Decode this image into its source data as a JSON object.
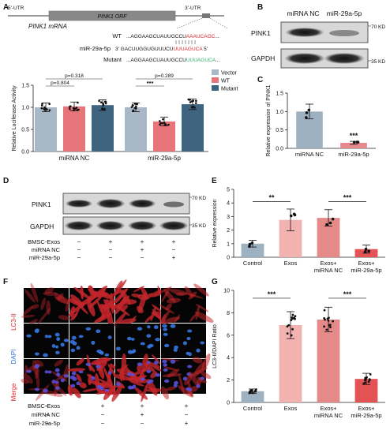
{
  "panel_labels": [
    "A",
    "B",
    "C",
    "D",
    "E",
    "F",
    "G"
  ],
  "panel_a": {
    "gene_map": {
      "left_label": "5'-UTR",
      "orf_label": "PINK1 ORF",
      "right_label": "3'-UTR",
      "mrna_label": "PINK1 mRNA"
    },
    "seq_rows": [
      {
        "label": "WT",
        "pre": "...AGGAAGCUAUUGCCU",
        "hl": "AAAUCAGC",
        "post": "...",
        "hl_color": "#e0262b"
      },
      {
        "label": "miR-29a-5p",
        "pre": "3'  GACUUGGUGUUUCU",
        "hl": "UUUAGUCA",
        "post": "  5'",
        "hl_color": "#e0262b"
      },
      {
        "label": "Mutant",
        "pre": "...AGGAAGCUAUUGCCU",
        "hl": "UUUAGUCA",
        "post": "...",
        "hl_color": "#2fae6b"
      }
    ],
    "pvalues": [
      "p=0.318",
      "p=0.804",
      "***",
      "p=0.289"
    ]
  },
  "panel_b": {
    "col_labels": [
      "miRNA NC",
      "miR-29a-5p"
    ],
    "rows": [
      {
        "name": "PINK1",
        "kd": "70 KD"
      },
      {
        "name": "GAPDH",
        "kd": "35 KD"
      }
    ]
  },
  "panel_d": {
    "rows": [
      {
        "name": "PINK1",
        "kd": "70 KD"
      },
      {
        "name": "GAPDH",
        "kd": "35 KD"
      }
    ],
    "conditions": [
      {
        "name": "BMSC-Exos",
        "signs": [
          "−",
          "+",
          "+",
          "+"
        ]
      },
      {
        "name": "miRNA NC",
        "signs": [
          "−",
          "−",
          "+",
          "−"
        ]
      },
      {
        "name": "miR-29a-5p",
        "signs": [
          "−",
          "−",
          "−",
          "+"
        ]
      }
    ]
  },
  "panel_f": {
    "row_labels": [
      {
        "name": "LC3-II",
        "color": "#e0262b"
      },
      {
        "name": "DAPI",
        "color": "#2a6fdb"
      },
      {
        "name": "Merge",
        "color": "#e0262b"
      }
    ],
    "conditions": [
      {
        "name": "BMSC-Exos",
        "signs": [
          "−",
          "+",
          "+",
          "+"
        ]
      },
      {
        "name": "miRNA NC",
        "signs": [
          "−",
          "−",
          "+",
          "−"
        ]
      },
      {
        "name": "miR-29a-5p",
        "signs": [
          "−",
          "−",
          "−",
          "+"
        ]
      }
    ]
  },
  "colors": {
    "vector": "#a9b8c6",
    "wt": "#e8757a",
    "mutant": "#3f6480",
    "control": "#9eb1c1"
  },
  "chart_data": [
    {
      "panel": "A",
      "type": "bar",
      "categories": [
        "miRNA NC",
        "miR-29a-5p"
      ],
      "series": [
        {
          "name": "Vector",
          "values": [
            1.0,
            1.0
          ]
        },
        {
          "name": "WT",
          "values": [
            1.02,
            0.68
          ]
        },
        {
          "name": "Mutant",
          "values": [
            1.05,
            1.07
          ]
        }
      ],
      "ylabel": "Relative Luciferase Activity",
      "ylim": [
        0,
        1.5
      ],
      "yticks": [
        "0.0",
        "0.5",
        "1.0",
        "1.5"
      ],
      "legend": "right"
    },
    {
      "panel": "C",
      "type": "bar",
      "categories": [
        "miRNA NC",
        "miR-29a-5p"
      ],
      "values": [
        1.0,
        0.15
      ],
      "errors": [
        0.2,
        0.04
      ],
      "ylabel": "Relative expression of PINK1",
      "ylim": [
        0,
        1.5
      ],
      "yticks": [
        "0.0",
        "0.5",
        "1.0",
        "1.5"
      ],
      "annotations": [
        "***"
      ]
    },
    {
      "panel": "E",
      "type": "bar",
      "categories": [
        "Control",
        "Exos",
        "Exos+\nmiRNA NC",
        "Exos+\nmiR-29a-5p"
      ],
      "values": [
        1.0,
        2.75,
        2.9,
        0.6
      ],
      "errors": [
        0.25,
        0.8,
        0.6,
        0.3
      ],
      "ylabel": "Relative expression",
      "ylim": [
        0,
        5
      ],
      "yticks": [
        "0",
        "1",
        "2",
        "3",
        "4",
        "5"
      ],
      "annotations": [
        "**",
        "***"
      ]
    },
    {
      "panel": "G",
      "type": "bar",
      "categories": [
        "Control",
        "Exos",
        "Exos+\nmiRNA NC",
        "Exos+\nmiR-29a-5p"
      ],
      "values": [
        1.0,
        6.9,
        7.4,
        2.1
      ],
      "errors": [
        0.2,
        1.2,
        1.1,
        0.5
      ],
      "ylabel": "LC3-II/DAPI Ratio",
      "ylim": [
        0,
        10
      ],
      "yticks": [
        "0",
        "2",
        "4",
        "6",
        "8",
        "10"
      ],
      "annotations": [
        "***",
        "***"
      ]
    }
  ]
}
